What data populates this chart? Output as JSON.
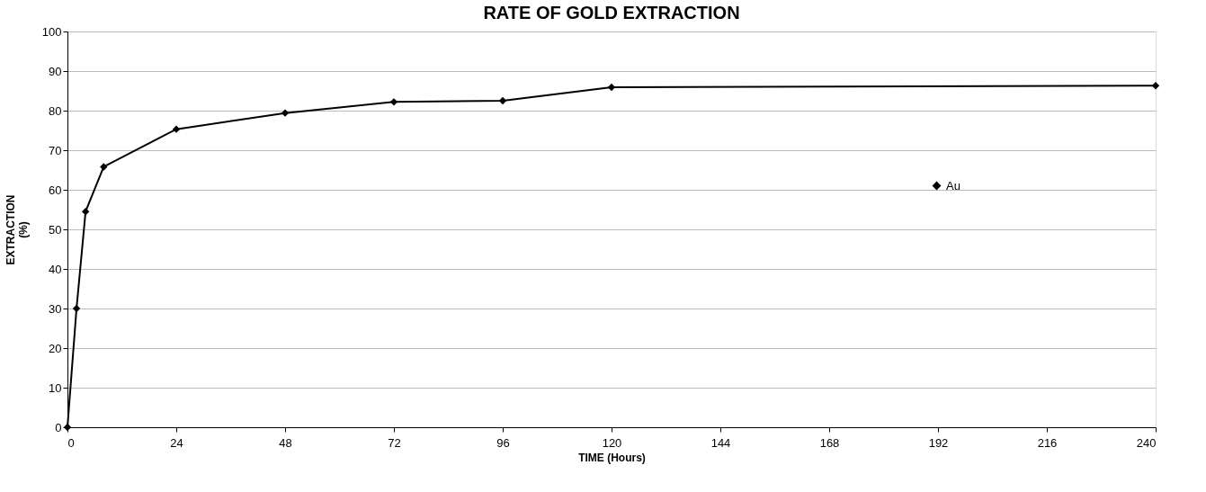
{
  "chart_data": {
    "type": "line",
    "title": "RATE OF GOLD EXTRACTION",
    "xlabel": "TIME  (Hours)",
    "ylabel": "EXTRACTION\n(%)",
    "x": [
      0,
      2,
      4,
      8,
      24,
      48,
      72,
      96,
      120,
      240
    ],
    "series": [
      {
        "name": "Au",
        "color": "#000000",
        "values": [
          0,
          30,
          54.5,
          65.8,
          75.3,
          79.4,
          82.2,
          82.5,
          85.9,
          86.3
        ]
      }
    ],
    "xlim": [
      0,
      240
    ],
    "xticks": [
      0,
      24,
      48,
      72,
      96,
      120,
      144,
      168,
      192,
      216,
      240
    ],
    "ylim": [
      0,
      100
    ],
    "yticks": [
      0,
      10,
      20,
      30,
      40,
      50,
      60,
      70,
      80,
      90,
      100
    ],
    "grid": "y",
    "legend": "right",
    "marker": "diamond",
    "line_style": "solid"
  }
}
